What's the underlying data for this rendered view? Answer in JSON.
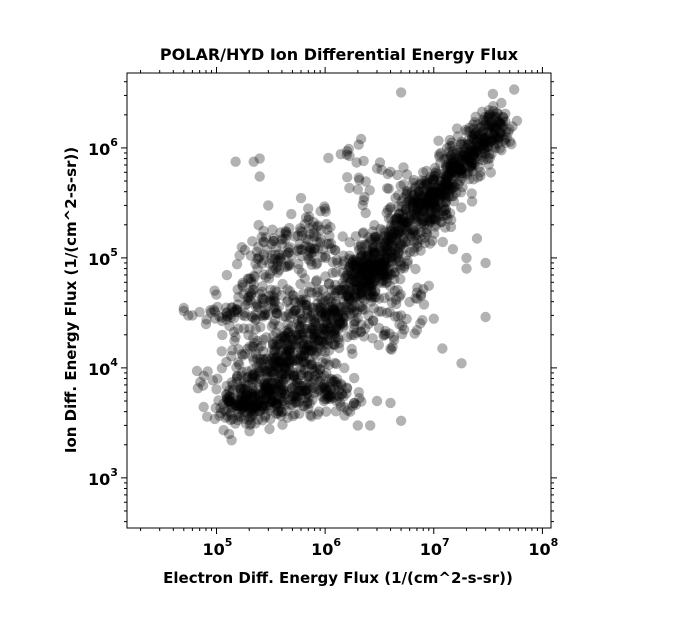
{
  "chart_data": {
    "type": "scatter",
    "title": "POLAR/HYD  Ion Differential Energy Flux",
    "xlabel": "Electron Diff. Energy Flux (1/(cm^2-s-sr))",
    "ylabel": "Ion Diff. Energy Flux (1/(cm^2-s-sr))",
    "xscale": "log",
    "yscale": "log",
    "xlim": [
      15000,
      120000000
    ],
    "ylim": [
      350,
      4800000
    ],
    "x_ticks": [
      {
        "base": "10",
        "exp": "5",
        "value": 100000
      },
      {
        "base": "10",
        "exp": "6",
        "value": 1000000
      },
      {
        "base": "10",
        "exp": "7",
        "value": 10000000
      },
      {
        "base": "10",
        "exp": "8",
        "value": 100000000
      }
    ],
    "y_ticks": [
      {
        "base": "10",
        "exp": "3",
        "value": 1000
      },
      {
        "base": "10",
        "exp": "4",
        "value": 10000
      },
      {
        "base": "10",
        "exp": "5",
        "value": 100000
      },
      {
        "base": "10",
        "exp": "6",
        "value": 1000000
      }
    ],
    "grid": false,
    "marker": {
      "color": "#000000",
      "opacity": 0.3
    },
    "clusters": [
      {
        "x": [
          8000000,
          40000000
        ],
        "y": [
          300000,
          1700000
        ],
        "n": 450,
        "spread": 0.09
      },
      {
        "x": [
          2000000,
          9000000
        ],
        "y": [
          60000,
          350000
        ],
        "n": 380,
        "spread": 0.12
      },
      {
        "x": [
          500000,
          2500000
        ],
        "y": [
          12000,
          70000
        ],
        "n": 400,
        "spread": 0.14
      },
      {
        "x": [
          120000,
          1600000
        ],
        "y": [
          4500,
          6500
        ],
        "n": 300,
        "spread": 0.1
      },
      {
        "x": [
          150000,
          600000
        ],
        "y": [
          5000,
          15000
        ],
        "n": 280,
        "spread": 0.16
      },
      {
        "x": [
          120000,
          300000
        ],
        "y": [
          20000,
          80000
        ],
        "n": 120,
        "spread": 0.14
      },
      {
        "x": [
          200000,
          1500000
        ],
        "y": [
          100000,
          120000
        ],
        "n": 80,
        "spread": 0.1
      },
      {
        "x": [
          400000,
          1200000
        ],
        "y": [
          150000,
          200000
        ],
        "n": 50,
        "spread": 0.1
      },
      {
        "x": [
          250000,
          800000
        ],
        "y": [
          30000,
          40000
        ],
        "n": 60,
        "spread": 0.1
      },
      {
        "x": [
          2000000,
          4000000
        ],
        "y": [
          70000,
          90000
        ],
        "n": 50,
        "spread": 0.1
      },
      {
        "x": [
          1500000,
          4000000
        ],
        "y": [
          700000,
          500000
        ],
        "n": 30,
        "spread": 0.15
      },
      {
        "x": [
          6000000,
          12000000
        ],
        "y": [
          400000,
          250000
        ],
        "n": 35,
        "spread": 0.1
      },
      {
        "x": [
          4000000,
          8000000
        ],
        "y": [
          40000,
          45000
        ],
        "n": 25,
        "spread": 0.1
      },
      {
        "x": [
          2500000,
          5000000
        ],
        "y": [
          20000,
          25000
        ],
        "n": 25,
        "spread": 0.12
      }
    ],
    "points": [
      [
        150000,
        750000
      ],
      [
        220000,
        750000
      ],
      [
        250000,
        800000
      ],
      [
        250000,
        550000
      ],
      [
        50000,
        35000
      ],
      [
        55000,
        30000
      ],
      [
        60000,
        30000
      ],
      [
        80000,
        25000
      ],
      [
        50000,
        33000
      ],
      [
        2600000,
        3000
      ],
      [
        5000000,
        3200000
      ],
      [
        55000000,
        3400000
      ],
      [
        35000000,
        3100000
      ],
      [
        30000000,
        29000
      ],
      [
        20000000,
        100000
      ],
      [
        25000000,
        150000
      ],
      [
        30000000,
        90000
      ],
      [
        18000000,
        11000
      ],
      [
        12000000,
        15000
      ],
      [
        2000000,
        420000
      ],
      [
        3000000,
        650000
      ],
      [
        8000000,
        600000
      ],
      [
        13000000,
        250000
      ],
      [
        15000000,
        120000
      ],
      [
        20000000,
        80000
      ],
      [
        4000000,
        4800
      ],
      [
        5000000,
        3300
      ],
      [
        3000000,
        5000
      ],
      [
        2000000,
        3000
      ],
      [
        1700000,
        4000
      ],
      [
        300000,
        300000
      ],
      [
        600000,
        350000
      ],
      [
        1000000,
        280000
      ],
      [
        4000000,
        15000
      ],
      [
        1000000,
        14000
      ],
      [
        800000,
        20000
      ],
      [
        1500000,
        10000
      ],
      [
        5000000,
        30000
      ],
      [
        10000000,
        28000
      ],
      [
        7000000,
        22000
      ]
    ]
  }
}
